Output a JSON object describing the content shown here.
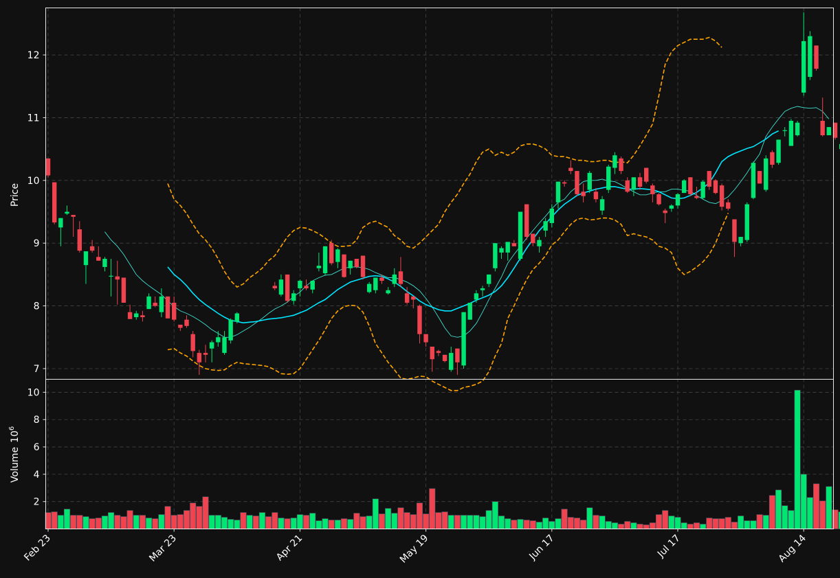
{
  "chart_data": {
    "type": "candlestick",
    "price_panel": {
      "ylabel": "Price",
      "yticks": [
        7,
        8,
        9,
        10,
        11,
        12
      ],
      "ylim": [
        6.83,
        12.75
      ],
      "grid": true
    },
    "volume_panel": {
      "ylabel": "Volume",
      "ylabel_exponent": "10",
      "ylabel_exponent_power": "6",
      "yticks": [
        2,
        4,
        6,
        8,
        10
      ],
      "ylim": [
        0,
        10.95
      ],
      "grid": true
    },
    "x_ticks": [
      {
        "index": 0,
        "label": "Feb 23"
      },
      {
        "index": 20,
        "label": "Mar 23"
      },
      {
        "index": 40,
        "label": "Apr 21"
      },
      {
        "index": 60,
        "label": "May 19"
      },
      {
        "index": 80,
        "label": "Jun 17"
      },
      {
        "index": 100,
        "label": "Jul 17"
      },
      {
        "index": 120,
        "label": "Aug 14"
      }
    ],
    "candles": [
      [
        10.35,
        10.35,
        10.05,
        10.08
      ],
      [
        9.97,
        9.97,
        9.3,
        9.33
      ],
      [
        9.25,
        9.4,
        8.95,
        9.4
      ],
      [
        9.47,
        9.6,
        9.45,
        9.5
      ],
      [
        9.45,
        9.45,
        9.1,
        9.42
      ],
      [
        9.22,
        9.35,
        8.85,
        8.88
      ],
      [
        8.65,
        8.85,
        8.35,
        8.87
      ],
      [
        8.95,
        9.05,
        8.85,
        8.88
      ],
      [
        8.78,
        8.95,
        8.72,
        8.72
      ],
      [
        8.62,
        8.78,
        8.55,
        8.75
      ],
      [
        8.47,
        8.75,
        8.15,
        8.48
      ],
      [
        8.47,
        8.72,
        8.02,
        8.42
      ],
      [
        8.45,
        8.45,
        8.05,
        8.05
      ],
      [
        7.9,
        8.02,
        7.82,
        7.79
      ],
      [
        7.82,
        7.92,
        7.78,
        7.88
      ],
      [
        7.85,
        7.92,
        7.75,
        7.82
      ],
      [
        7.95,
        8.2,
        7.95,
        8.15
      ],
      [
        8.05,
        8.15,
        7.98,
        8.0
      ],
      [
        7.9,
        8.28,
        7.82,
        8.15
      ],
      [
        8.15,
        8.15,
        7.8,
        7.8
      ],
      [
        8.05,
        8.15,
        7.75,
        7.78
      ],
      [
        7.7,
        7.7,
        7.6,
        7.65
      ],
      [
        7.78,
        7.85,
        7.65,
        7.68
      ],
      [
        7.55,
        7.6,
        7.18,
        7.28
      ],
      [
        7.25,
        7.3,
        6.9,
        7.1
      ],
      [
        7.25,
        7.38,
        7.1,
        7.22
      ],
      [
        7.32,
        7.45,
        7.1,
        7.42
      ],
      [
        7.42,
        7.6,
        7.35,
        7.5
      ],
      [
        7.25,
        7.6,
        7.22,
        7.5
      ],
      [
        7.45,
        7.8,
        7.4,
        7.78
      ],
      [
        7.75,
        7.9,
        7.72,
        7.88
      ],
      null,
      null,
      null,
      null,
      null,
      [
        8.32,
        8.38,
        8.25,
        8.28
      ],
      [
        8.18,
        8.5,
        8.15,
        8.42
      ],
      [
        8.5,
        8.5,
        8.05,
        8.08
      ],
      [
        8.08,
        8.25,
        8.02,
        8.2
      ],
      [
        8.28,
        8.42,
        8.15,
        8.4
      ],
      [
        8.32,
        8.42,
        8.25,
        8.28
      ],
      [
        8.26,
        8.4,
        8.2,
        8.4
      ],
      [
        8.6,
        8.85,
        8.55,
        8.64
      ],
      [
        8.52,
        8.95,
        8.48,
        8.95
      ],
      [
        9.0,
        9.05,
        8.65,
        8.68
      ],
      [
        8.7,
        8.92,
        8.6,
        8.9
      ],
      [
        8.82,
        8.82,
        8.45,
        8.46
      ],
      [
        8.6,
        8.72,
        8.5,
        8.72
      ],
      [
        8.75,
        8.75,
        8.6,
        8.62
      ],
      [
        8.8,
        8.8,
        8.42,
        8.46
      ],
      [
        8.22,
        8.38,
        8.2,
        8.35
      ],
      [
        8.25,
        8.45,
        8.2,
        8.45
      ],
      [
        8.45,
        8.5,
        8.35,
        8.4
      ],
      [
        8.2,
        8.3,
        8.18,
        8.25
      ],
      [
        8.35,
        8.6,
        8.3,
        8.5
      ],
      [
        8.55,
        8.78,
        8.3,
        8.35
      ],
      [
        8.2,
        8.3,
        8.02,
        8.05
      ],
      [
        8.15,
        8.15,
        7.96,
        8.1
      ],
      [
        8.0,
        8.02,
        7.4,
        7.55
      ],
      [
        7.55,
        7.55,
        7.35,
        7.42
      ],
      [
        7.35,
        7.35,
        6.95,
        7.15
      ],
      [
        7.28,
        7.3,
        7.2,
        7.25
      ],
      [
        7.22,
        7.22,
        7.1,
        7.12
      ],
      [
        6.98,
        7.35,
        6.95,
        7.25
      ],
      [
        7.32,
        7.32,
        6.9,
        7.1
      ],
      [
        7.05,
        7.9,
        7.0,
        7.9
      ],
      [
        7.78,
        8.05,
        7.78,
        8.05
      ],
      [
        8.1,
        8.25,
        8.05,
        8.2
      ],
      [
        8.25,
        8.32,
        8.15,
        8.28
      ],
      [
        8.35,
        8.5,
        8.3,
        8.5
      ],
      [
        8.6,
        9.0,
        8.55,
        9.0
      ],
      [
        8.85,
        8.95,
        8.75,
        8.92
      ],
      [
        8.85,
        9.0,
        8.72,
        9.02
      ],
      [
        9.0,
        9.05,
        8.95,
        8.95
      ],
      [
        8.75,
        9.5,
        8.72,
        9.5
      ],
      [
        9.62,
        9.62,
        9.05,
        9.1
      ],
      [
        9.15,
        9.15,
        8.95,
        9.0
      ],
      [
        8.95,
        9.1,
        8.85,
        9.05
      ],
      [
        9.2,
        9.4,
        9.1,
        9.35
      ],
      [
        9.32,
        9.62,
        9.25,
        9.55
      ],
      [
        9.65,
        9.98,
        9.55,
        9.98
      ],
      [
        9.97,
        10.0,
        9.9,
        9.95
      ],
      [
        10.2,
        10.32,
        10.1,
        10.15
      ],
      [
        10.15,
        10.15,
        9.75,
        9.78
      ],
      [
        9.82,
        9.95,
        9.65,
        9.75
      ],
      [
        9.85,
        10.15,
        9.8,
        10.12
      ],
      [
        9.82,
        9.88,
        9.65,
        9.7
      ],
      [
        9.52,
        9.75,
        9.45,
        9.7
      ],
      [
        9.85,
        10.25,
        9.8,
        10.22
      ],
      [
        10.2,
        10.45,
        10.1,
        10.4
      ],
      [
        10.35,
        10.38,
        10.1,
        10.15
      ],
      [
        10.0,
        10.05,
        9.8,
        9.82
      ],
      [
        9.85,
        10.05,
        9.75,
        10.05
      ],
      [
        10.05,
        10.12,
        9.85,
        9.9
      ],
      [
        10.2,
        10.2,
        9.95,
        9.98
      ],
      [
        9.92,
        9.95,
        9.65,
        9.78
      ],
      [
        9.78,
        9.8,
        9.6,
        9.62
      ],
      [
        9.52,
        9.55,
        9.32,
        9.48
      ],
      [
        9.55,
        9.62,
        9.5,
        9.6
      ],
      [
        9.6,
        9.8,
        9.55,
        9.78
      ],
      [
        9.8,
        10.02,
        9.8,
        10.0
      ],
      [
        10.05,
        10.05,
        9.75,
        9.78
      ],
      [
        9.75,
        9.9,
        9.7,
        9.72
      ],
      [
        9.72,
        10.0,
        9.7,
        9.98
      ],
      [
        10.15,
        10.15,
        9.85,
        9.9
      ],
      [
        10.0,
        10.02,
        9.78,
        9.8
      ],
      [
        9.92,
        9.95,
        9.52,
        9.58
      ],
      [
        9.65,
        9.7,
        9.52,
        9.55
      ],
      [
        9.38,
        9.38,
        8.78,
        9.02
      ],
      [
        9.0,
        9.1,
        8.95,
        9.1
      ],
      [
        9.05,
        9.65,
        9.02,
        9.62
      ],
      [
        9.72,
        10.3,
        9.7,
        10.28
      ],
      [
        10.15,
        10.15,
        9.95,
        9.95
      ],
      [
        9.85,
        10.4,
        9.82,
        10.35
      ],
      [
        10.45,
        10.48,
        10.2,
        10.25
      ],
      [
        10.28,
        10.65,
        10.25,
        10.65
      ],
      [
        10.8,
        10.85,
        10.7,
        10.8
      ],
      [
        10.55,
        10.98,
        10.55,
        10.95
      ],
      [
        10.72,
        10.95,
        10.7,
        10.92
      ],
      [
        11.4,
        12.68,
        11.35,
        12.22
      ],
      [
        11.65,
        12.38,
        11.6,
        12.3
      ],
      [
        12.15,
        12.15,
        11.75,
        11.78
      ],
      [
        10.95,
        11.32,
        10.7,
        10.72
      ],
      [
        10.72,
        10.85,
        10.72,
        10.85
      ],
      [
        10.92,
        10.92,
        10.65,
        10.68
      ],
      [
        10.5,
        10.58,
        10.35,
        10.58
      ],
      [
        10.55,
        10.7,
        10.48,
        10.5
      ],
      [
        10.7,
        11.3,
        10.65,
        11.28
      ],
      [
        11.0,
        11.02,
        10.45,
        10.48
      ],
      [
        10.55,
        10.75,
        10.55,
        10.75
      ]
    ],
    "volumes": [
      1.2,
      1.25,
      1.0,
      1.45,
      1.0,
      1.0,
      0.9,
      0.75,
      0.8,
      0.95,
      1.2,
      1.0,
      0.9,
      1.35,
      1.0,
      1.0,
      0.8,
      0.75,
      1.05,
      1.65,
      1.0,
      1.05,
      1.35,
      1.9,
      1.65,
      2.35,
      1.0,
      1.0,
      0.85,
      0.7,
      0.65,
      1.2,
      1.0,
      0.95,
      1.2,
      0.9,
      1.2,
      0.8,
      0.75,
      0.8,
      1.05,
      1.0,
      1.15,
      0.6,
      0.75,
      0.65,
      0.65,
      0.75,
      0.7,
      1.15,
      0.9,
      0.95,
      2.2,
      1.1,
      1.5,
      1.15,
      1.55,
      1.2,
      1.05,
      1.9,
      1.1,
      2.95,
      1.2,
      1.25,
      1.0,
      1.0,
      1.0,
      1.0,
      1.0,
      0.9,
      1.35,
      2.0,
      0.95,
      0.75,
      0.65,
      0.7,
      0.65,
      0.6,
      0.5,
      0.8,
      0.55,
      0.75,
      1.45,
      0.85,
      0.8,
      0.65,
      1.55,
      1.0,
      0.95,
      0.55,
      0.45,
      0.35,
      0.55,
      0.45,
      0.35,
      0.3,
      0.45,
      1.05,
      1.35,
      0.95,
      0.85,
      0.45,
      0.35,
      0.45,
      0.35,
      0.8,
      0.75,
      0.75,
      0.85,
      0.5,
      0.95,
      0.6,
      0.6,
      1.05,
      1.0,
      2.45,
      2.85,
      1.7,
      1.35,
      10.15,
      4.0,
      2.3,
      3.3,
      2.05,
      3.1,
      1.4,
      1.25
    ],
    "series": [
      {
        "style": "thin-ma",
        "color": "#40e0d0",
        "start": 9,
        "values": [
          9.18,
          9.05,
          8.95,
          8.82,
          8.66,
          8.5,
          8.4,
          8.32,
          8.25,
          8.18,
          8.08,
          7.99,
          7.92,
          7.88,
          7.83,
          7.77,
          7.7,
          7.62,
          7.56,
          7.5,
          7.5,
          7.54,
          7.6,
          7.66,
          7.73,
          7.8,
          7.88,
          7.95,
          8.0,
          8.06,
          8.15,
          8.22,
          8.32,
          8.4,
          8.45,
          8.49,
          8.5,
          8.55,
          8.6,
          8.62,
          8.62,
          8.61,
          8.58,
          8.53,
          8.49,
          8.45,
          8.45,
          8.42,
          8.38,
          8.32,
          8.24,
          8.12,
          7.98,
          7.82,
          7.65,
          7.52,
          7.5,
          7.52,
          7.6,
          7.72,
          7.9,
          8.1,
          8.28,
          8.46,
          8.68,
          8.82,
          8.95,
          9.08,
          9.2,
          9.32,
          9.43,
          9.55,
          9.65,
          9.7,
          9.82,
          9.9,
          9.98,
          10.0,
          10.0,
          10.02,
          9.99,
          9.98,
          9.93,
          9.87,
          9.82,
          9.77,
          9.77,
          9.8,
          9.82,
          9.82,
          9.86,
          9.86,
          9.84,
          9.83,
          9.76,
          9.7,
          9.65,
          9.63,
          9.68,
          9.74,
          9.85,
          9.98,
          10.12,
          10.28,
          10.42,
          10.7,
          10.85,
          10.98,
          11.1,
          11.15,
          11.18,
          11.16,
          11.15,
          11.16,
          11.1,
          10.98
        ]
      },
      {
        "style": "thick-ma",
        "color": "#00e5ff",
        "start": 19,
        "values": [
          8.62,
          8.5,
          8.42,
          8.32,
          8.2,
          8.1,
          8.02,
          7.95,
          7.88,
          7.82,
          7.77,
          7.75,
          7.73,
          7.74,
          7.75,
          7.77,
          7.79,
          7.8,
          7.81,
          7.83,
          7.85,
          7.89,
          7.93,
          7.99,
          8.05,
          8.1,
          8.18,
          8.26,
          8.32,
          8.38,
          8.41,
          8.44,
          8.47,
          8.48,
          8.47,
          8.43,
          8.38,
          8.31,
          8.23,
          8.16,
          8.08,
          8.02,
          7.98,
          7.94,
          7.92,
          7.92,
          7.96,
          8.0,
          8.04,
          8.09,
          8.13,
          8.17,
          8.23,
          8.32,
          8.45,
          8.6,
          8.76,
          8.92,
          9.06,
          9.2,
          9.31,
          9.42,
          9.53,
          9.62,
          9.69,
          9.76,
          9.8,
          9.83,
          9.86,
          9.88,
          9.9,
          9.9,
          9.88,
          9.86,
          9.86,
          9.87,
          9.86,
          9.85,
          9.82,
          9.77,
          9.72,
          9.71,
          9.72,
          9.76,
          9.81,
          9.88,
          9.96,
          10.12,
          10.3,
          10.38,
          10.43,
          10.47,
          10.51,
          10.54,
          10.6,
          10.66,
          10.74,
          10.79
        ]
      },
      {
        "style": "band",
        "color": "#ffa500",
        "start": 19,
        "values": [
          9.95,
          9.7,
          9.6,
          9.47,
          9.3,
          9.15,
          9.05,
          8.92,
          8.75,
          8.55,
          8.4,
          8.3,
          8.35,
          8.45,
          8.52,
          8.6,
          8.72,
          8.8,
          8.95,
          9.1,
          9.2,
          9.25,
          9.24,
          9.2,
          9.15,
          9.08,
          9.0,
          8.95,
          8.95,
          8.96,
          9.05,
          9.25,
          9.32,
          9.35,
          9.3,
          9.25,
          9.12,
          9.05,
          8.95,
          8.92,
          9.0,
          9.1,
          9.2,
          9.3,
          9.5,
          9.65,
          9.78,
          9.95,
          10.1,
          10.3,
          10.45,
          10.5,
          10.4,
          10.45,
          10.4,
          10.45,
          10.55,
          10.58,
          10.58,
          10.55,
          10.5,
          10.4,
          10.38,
          10.38,
          10.35,
          10.32,
          10.32,
          10.3,
          10.3,
          10.32,
          10.32,
          10.28,
          10.3,
          10.28,
          10.4,
          10.55,
          10.72,
          10.9,
          11.35,
          11.85,
          12.05,
          12.15,
          12.2,
          12.25,
          12.25,
          12.25,
          12.28,
          12.22,
          12.12
        ]
      },
      {
        "style": "band",
        "color": "#ffa500",
        "start": 19,
        "values": [
          7.3,
          7.32,
          7.25,
          7.2,
          7.12,
          7.05,
          7.0,
          6.98,
          6.97,
          6.98,
          7.05,
          7.1,
          7.08,
          7.07,
          7.06,
          7.05,
          7.03,
          6.98,
          6.92,
          6.91,
          6.92,
          7.0,
          7.15,
          7.3,
          7.45,
          7.62,
          7.8,
          7.92,
          7.99,
          8.01,
          8.0,
          7.9,
          7.68,
          7.4,
          7.25,
          7.1,
          6.98,
          6.85,
          6.83,
          6.85,
          6.88,
          6.87,
          6.8,
          6.75,
          6.7,
          6.65,
          6.65,
          6.7,
          6.72,
          6.75,
          6.8,
          6.95,
          7.2,
          7.4,
          7.8,
          8.0,
          8.22,
          8.42,
          8.58,
          8.68,
          8.8,
          8.97,
          9.05,
          9.18,
          9.3,
          9.38,
          9.4,
          9.37,
          9.38,
          9.4,
          9.4,
          9.37,
          9.3,
          9.12,
          9.15,
          9.12,
          9.1,
          9.05,
          8.95,
          8.92,
          8.85,
          8.6,
          8.5,
          8.55,
          8.62,
          8.7,
          8.82,
          9.0,
          9.25,
          9.48
        ]
      }
    ],
    "colors": {
      "up": "#00e673",
      "down": "#ef4450",
      "background": "#111111",
      "text": "#ffffff",
      "grid": "#444444"
    }
  }
}
